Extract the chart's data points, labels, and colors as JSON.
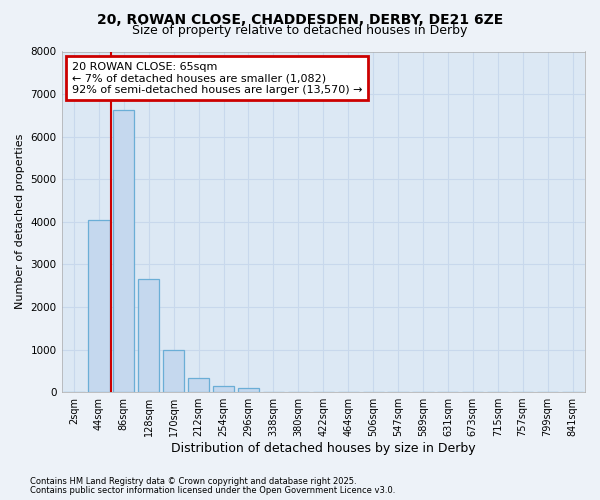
{
  "title_line1": "20, ROWAN CLOSE, CHADDESDEN, DERBY, DE21 6ZE",
  "title_line2": "Size of property relative to detached houses in Derby",
  "xlabel": "Distribution of detached houses by size in Derby",
  "ylabel": "Number of detached properties",
  "categories": [
    "2sqm",
    "44sqm",
    "86sqm",
    "128sqm",
    "170sqm",
    "212sqm",
    "254sqm",
    "296sqm",
    "338sqm",
    "380sqm",
    "422sqm",
    "464sqm",
    "506sqm",
    "547sqm",
    "589sqm",
    "631sqm",
    "673sqm",
    "715sqm",
    "757sqm",
    "799sqm",
    "841sqm"
  ],
  "bar_values": [
    0,
    4050,
    6620,
    2650,
    1000,
    340,
    150,
    100,
    0,
    0,
    0,
    0,
    0,
    0,
    0,
    0,
    0,
    0,
    0,
    0,
    0
  ],
  "bar_color": "#c5d8ee",
  "bar_edge_color": "#6baed6",
  "annotation_text": "20 ROWAN CLOSE: 65sqm\n← 7% of detached houses are smaller (1,082)\n92% of semi-detached houses are larger (13,570) →",
  "annotation_box_facecolor": "#ffffff",
  "annotation_box_edgecolor": "#cc0000",
  "vline_color": "#cc0000",
  "vline_xindex": 1.5,
  "ylim": [
    0,
    8000
  ],
  "yticks": [
    0,
    1000,
    2000,
    3000,
    4000,
    5000,
    6000,
    7000,
    8000
  ],
  "grid_color": "#c8d8ec",
  "bg_color": "#dce8f4",
  "fig_bg_color": "#edf2f8",
  "footer1": "Contains HM Land Registry data © Crown copyright and database right 2025.",
  "footer2": "Contains public sector information licensed under the Open Government Licence v3.0."
}
